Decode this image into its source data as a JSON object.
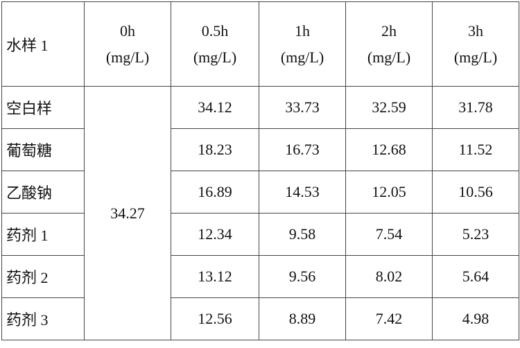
{
  "table": {
    "corner": "水样 1",
    "columns": [
      {
        "time": "0h",
        "unit": "(mg/L)"
      },
      {
        "time": "0.5h",
        "unit": "(mg/L)"
      },
      {
        "time": "1h",
        "unit": "(mg/L)"
      },
      {
        "time": "2h",
        "unit": "(mg/L)"
      },
      {
        "time": "3h",
        "unit": "(mg/L)"
      }
    ],
    "initial": 34.27,
    "rows": [
      {
        "label": "空白样",
        "values": [
          34.12,
          33.73,
          32.59,
          31.78
        ]
      },
      {
        "label": "葡萄糖",
        "values": [
          18.23,
          16.73,
          12.68,
          11.52
        ]
      },
      {
        "label": "乙酸钠",
        "values": [
          16.89,
          14.53,
          12.05,
          10.56
        ]
      },
      {
        "label": "药剂 1",
        "values": [
          12.34,
          9.58,
          7.54,
          5.23
        ]
      },
      {
        "label": "药剂 2",
        "values": [
          13.12,
          9.56,
          8.02,
          5.64
        ]
      },
      {
        "label": "药剂 3",
        "values": [
          12.56,
          8.89,
          7.42,
          4.98
        ]
      }
    ]
  }
}
